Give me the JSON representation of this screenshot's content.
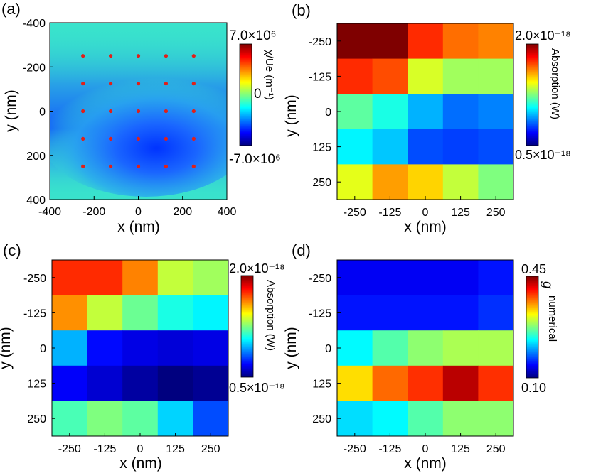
{
  "colors": {
    "jet": [
      "#00007f",
      "#0000ff",
      "#007fff",
      "#00ffff",
      "#7fff7f",
      "#ffff00",
      "#ff7f00",
      "#ff0000",
      "#7f0000"
    ],
    "dot": "#e0201a",
    "base_a": "#39e3cc"
  },
  "chart_data": [
    {
      "id": "a",
      "panel_label": "(a)",
      "type": "heatmap",
      "xlabel": "x (nm)",
      "ylabel": "y (nm)",
      "xlim": [
        -400,
        400
      ],
      "ylim": [
        -400,
        400
      ],
      "y_inverted": true,
      "x_ticks": [
        "-400",
        "-200",
        "0",
        "200",
        "400"
      ],
      "y_ticks": [
        "-400",
        "-200",
        "0",
        "200",
        "400"
      ],
      "field_note": "smooth field, minimum (blue) near y = 100 nm, cyan elsewhere",
      "dots": {
        "x": [
          -250,
          -125,
          0,
          125,
          250
        ],
        "y": [
          -250,
          -125,
          0,
          125,
          250
        ]
      },
      "colorbar": {
        "label": "χ/Ue (m⁻¹)",
        "max_label": "7.0×10⁶",
        "mid_label": "0",
        "min_label": "-7.0×10⁶",
        "range": [
          -7000000,
          7000000
        ]
      }
    },
    {
      "id": "b",
      "panel_label": "(b)",
      "type": "heatmap",
      "xlabel": "x (nm)",
      "ylabel": "y (nm)",
      "x": [
        -250,
        -125,
        0,
        125,
        250
      ],
      "y": [
        -250,
        -125,
        0,
        125,
        250
      ],
      "x_ticks": [
        "-250",
        "-125",
        "0",
        "125",
        "250"
      ],
      "y_ticks": [
        "-250",
        "-125",
        "0",
        "125",
        "250"
      ],
      "values": [
        [
          2.0,
          2.0,
          1.75,
          1.65,
          1.62
        ],
        [
          1.75,
          1.7,
          1.38,
          1.3,
          1.3
        ],
        [
          1.2,
          1.1,
          0.95,
          0.85,
          0.88
        ],
        [
          1.05,
          0.98,
          0.8,
          0.78,
          0.8
        ],
        [
          1.4,
          1.58,
          1.5,
          1.35,
          1.25
        ]
      ],
      "vmin": 0.5,
      "vmax": 2.0,
      "colorbar": {
        "label": "Absorption (W)",
        "max_label": "2.0×10⁻¹⁸",
        "min_label": "0.5×10⁻¹⁸"
      }
    },
    {
      "id": "c",
      "panel_label": "(c)",
      "type": "heatmap",
      "xlabel": "x (nm)",
      "ylabel": "y (nm)",
      "x": [
        -250,
        -125,
        0,
        125,
        250
      ],
      "y": [
        -250,
        -125,
        0,
        125,
        250
      ],
      "x_ticks": [
        "-250",
        "-125",
        "0",
        "125",
        "250"
      ],
      "y_ticks": [
        "-250",
        "-125",
        "0",
        "125",
        "250"
      ],
      "values": [
        [
          1.75,
          1.75,
          1.62,
          1.35,
          1.3
        ],
        [
          1.6,
          1.35,
          1.22,
          1.1,
          1.05
        ],
        [
          0.95,
          0.7,
          0.65,
          0.63,
          0.65
        ],
        [
          0.68,
          0.62,
          0.55,
          0.48,
          0.53
        ],
        [
          1.17,
          1.25,
          1.2,
          1.0,
          0.8
        ]
      ],
      "vmin": 0.5,
      "vmax": 2.0,
      "colorbar": {
        "label": "Absorption (W)",
        "max_label": "2.0×10⁻¹⁸",
        "min_label": "0.5×10⁻¹⁸"
      }
    },
    {
      "id": "d",
      "panel_label": "(d)",
      "type": "heatmap",
      "xlabel": "x (nm)",
      "ylabel": "y (nm)",
      "x": [
        -250,
        -125,
        0,
        125,
        250
      ],
      "y": [
        -250,
        -125,
        0,
        125,
        250
      ],
      "x_ticks": [
        "-250",
        "-125",
        "0",
        "125",
        "250"
      ],
      "y_ticks": [
        "-250",
        "-125",
        "0",
        "125",
        "250"
      ],
      "values": [
        [
          0.14,
          0.14,
          0.14,
          0.14,
          0.15
        ],
        [
          0.15,
          0.15,
          0.15,
          0.15,
          0.16
        ],
        [
          0.23,
          0.26,
          0.28,
          0.29,
          0.29
        ],
        [
          0.33,
          0.37,
          0.39,
          0.43,
          0.39
        ],
        [
          0.22,
          0.23,
          0.26,
          0.28,
          0.28
        ]
      ],
      "vmin": 0.1,
      "vmax": 0.45,
      "colorbar": {
        "label_main": "g",
        "label_sub": "numerical",
        "max_label": "0.45",
        "min_label": "0.10"
      }
    }
  ]
}
